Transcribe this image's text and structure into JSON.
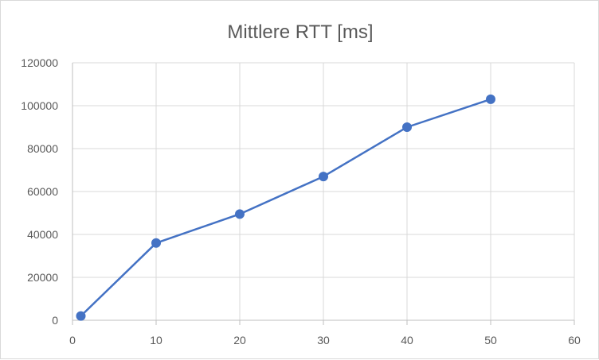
{
  "chart_data": {
    "type": "scatter",
    "title": "Mittlere RTT [ms]",
    "xlabel": "",
    "ylabel": "",
    "xlim": [
      0,
      60
    ],
    "ylim": [
      0,
      120000
    ],
    "x_ticks": [
      0,
      10,
      20,
      30,
      40,
      50,
      60
    ],
    "y_ticks": [
      0,
      20000,
      40000,
      60000,
      80000,
      100000,
      120000
    ],
    "grid": true,
    "legend": "none",
    "series": [
      {
        "color": "#4472c4",
        "x": [
          1,
          10,
          20,
          30,
          40,
          50
        ],
        "y": [
          2000,
          36000,
          49500,
          67000,
          90000,
          103000
        ],
        "lines": true,
        "markers": true
      }
    ]
  }
}
